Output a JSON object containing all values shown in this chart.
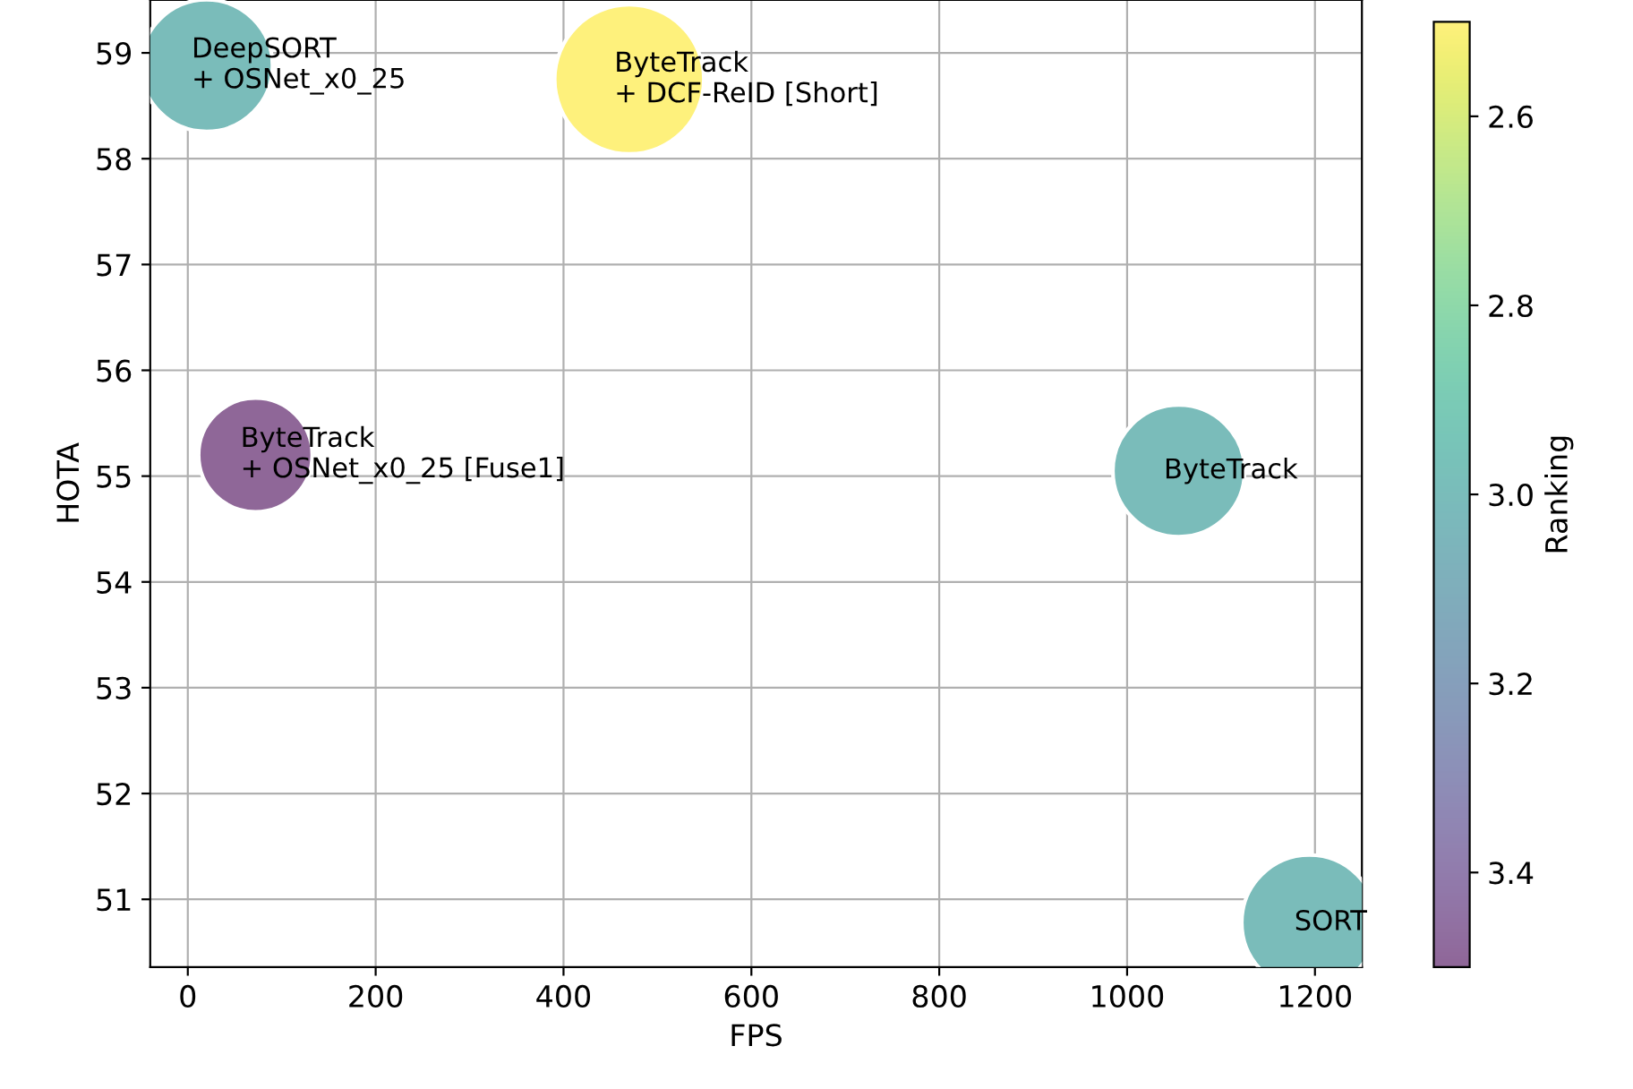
{
  "chart_data": {
    "type": "bubble",
    "xlabel": "FPS",
    "ylabel": "HOTA",
    "clabel": "Ranking",
    "x": [
      20,
      470,
      72,
      1055,
      1194
    ],
    "values": [
      58.88,
      58.75,
      55.2,
      55.05,
      50.78
    ],
    "sizes": [
      0.78,
      1,
      0.58,
      0.78,
      0.82
    ],
    "cvalues": [
      3.0,
      2.5,
      3.5,
      3.0,
      3.0
    ],
    "clim": [
      3.5,
      2.5
    ],
    "cticks": [
      2.6,
      2.8,
      {
        "value": 3,
        "label": "3.0"
      },
      3.2,
      3.4
    ],
    "xlim": [
      -40,
      1250
    ],
    "ylim": [
      50.36,
      59.5
    ],
    "xticks": [
      0,
      200,
      400,
      600,
      800,
      1000,
      1200
    ],
    "yticks": [
      51,
      52,
      53,
      54,
      55,
      56,
      57,
      58,
      59
    ],
    "grid": true,
    "annotations": [
      "DeepSORT\n+ OSNet_x0_25",
      "ByteTrack\n+ DCF-ReID [Short]",
      "ByteTrack\n+ OSNet_x0_25 [Fuse1]",
      "ByteTrack",
      "SORT"
    ]
  }
}
